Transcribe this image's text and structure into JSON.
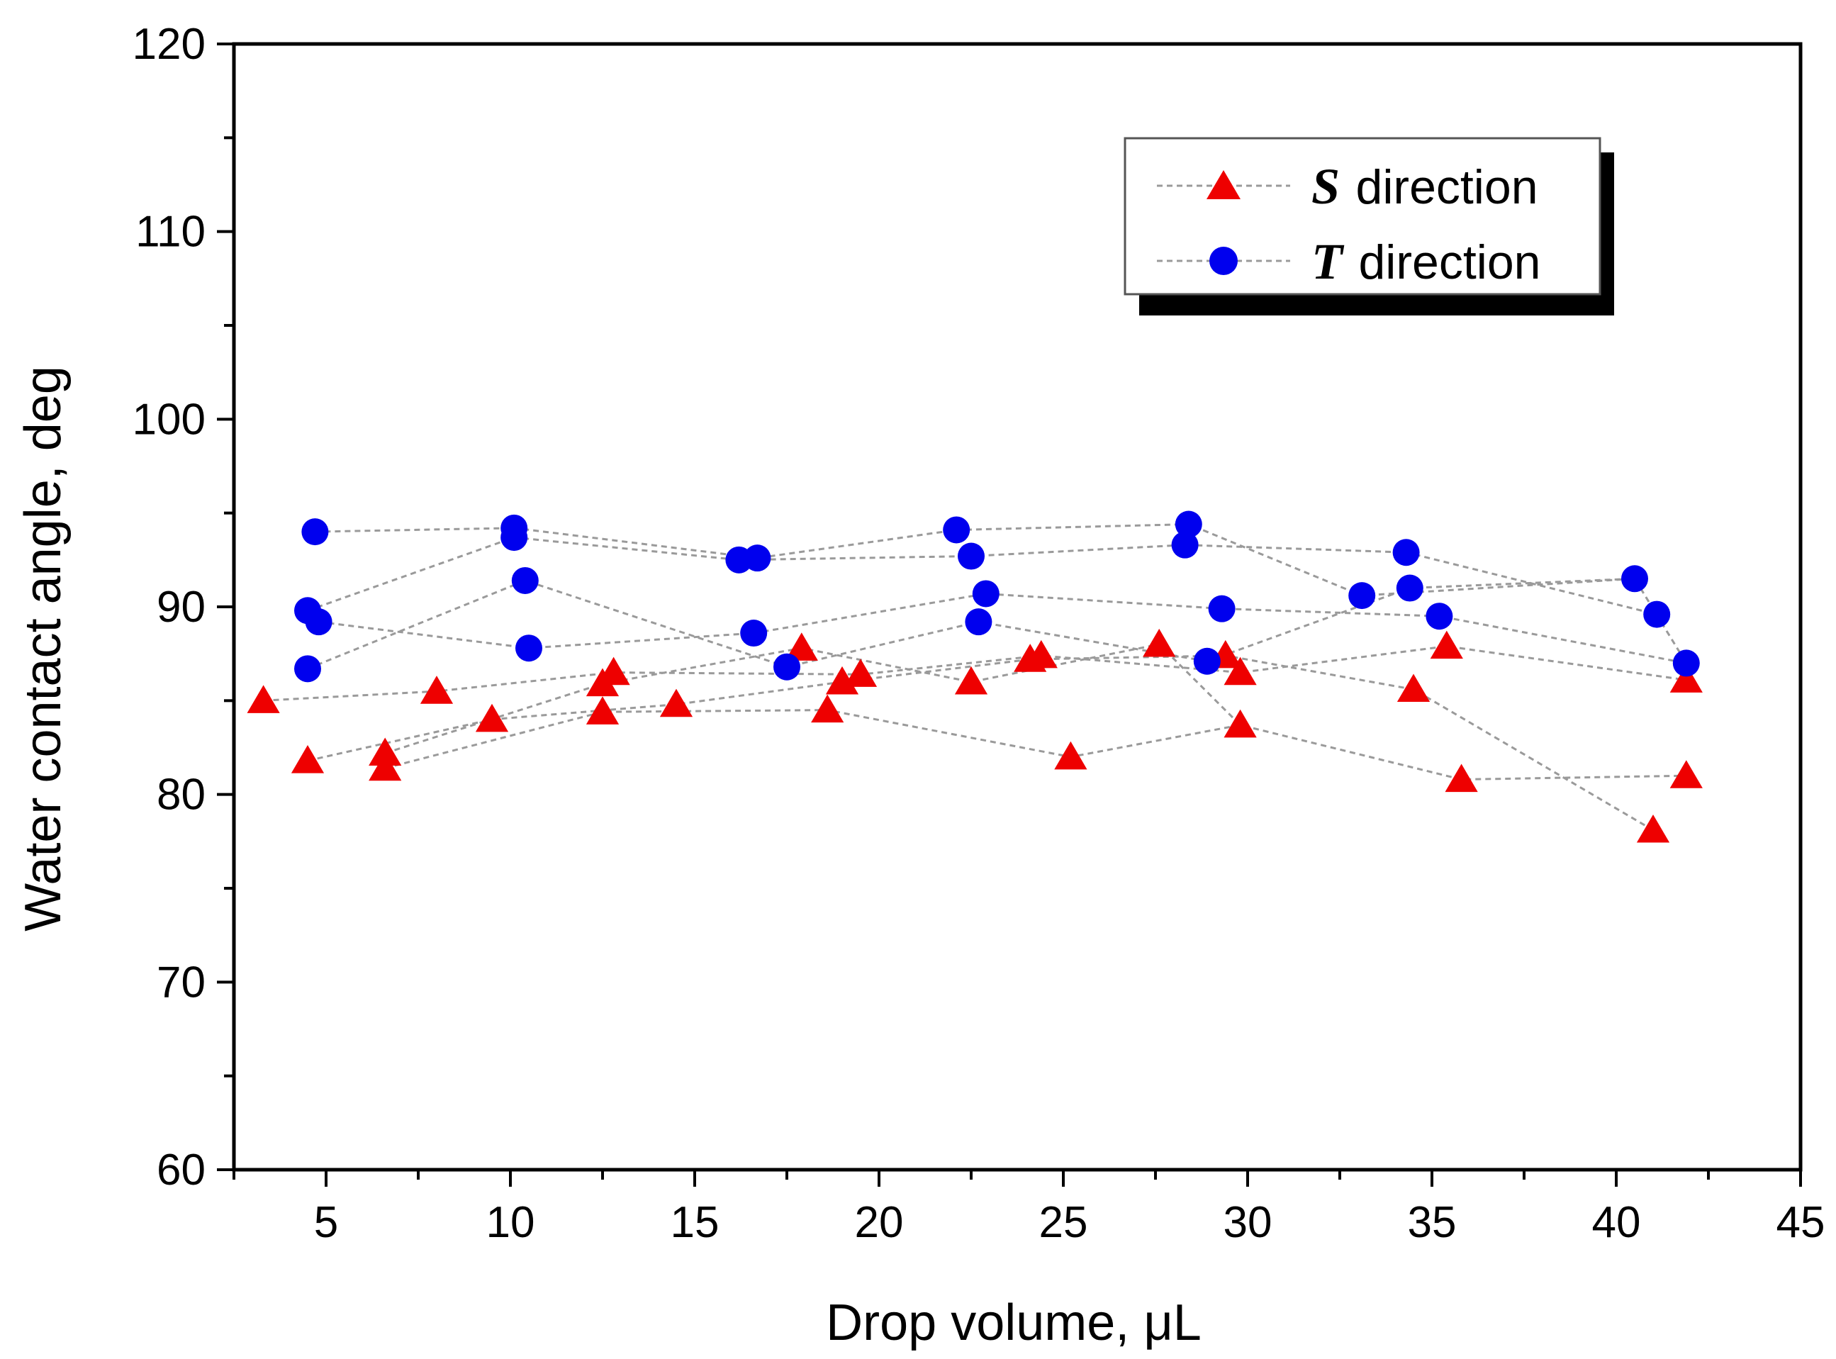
{
  "chart_data": {
    "type": "scatter",
    "title": "",
    "xlabel": "Drop volume, μL",
    "ylabel": "Water contact angle, deg",
    "xlim": [
      2.5,
      45
    ],
    "ylim": [
      60,
      120
    ],
    "xticks": [
      5,
      10,
      15,
      20,
      25,
      30,
      35,
      40,
      45
    ],
    "yticks": [
      60,
      70,
      80,
      90,
      100,
      110,
      120
    ],
    "grid": false,
    "legend_position": "top-right",
    "colors": {
      "S": "#ee0000",
      "T": "#0000ee",
      "line": "#9a9a9a"
    },
    "series": [
      {
        "name": "S direction",
        "symbol": "S",
        "label": "direction",
        "marker": "triangle",
        "points": [
          [
            3.3,
            85.0
          ],
          [
            4.5,
            81.8
          ],
          [
            6.6,
            82.2
          ],
          [
            6.6,
            81.4
          ],
          [
            8.0,
            85.5
          ],
          [
            9.5,
            84.0
          ],
          [
            12.5,
            85.9
          ],
          [
            12.5,
            84.4
          ],
          [
            12.8,
            86.5
          ],
          [
            14.5,
            84.8
          ],
          [
            17.9,
            87.8
          ],
          [
            18.6,
            84.5
          ],
          [
            19.0,
            86.0
          ],
          [
            19.5,
            86.4
          ],
          [
            22.5,
            86.0
          ],
          [
            24.1,
            87.2
          ],
          [
            24.4,
            87.4
          ],
          [
            25.2,
            82.0
          ],
          [
            27.6,
            88.0
          ],
          [
            29.4,
            87.4
          ],
          [
            29.8,
            86.5
          ],
          [
            29.8,
            83.7
          ],
          [
            34.5,
            85.6
          ],
          [
            35.4,
            87.9
          ],
          [
            35.8,
            80.8
          ],
          [
            41.0,
            78.1
          ],
          [
            41.9,
            86.1
          ],
          [
            41.9,
            81.0
          ]
        ],
        "connections": [
          [
            [
              3.3,
              85.0
            ],
            [
              8.0,
              85.5
            ],
            [
              12.8,
              86.5
            ],
            [
              19.5,
              86.4
            ],
            [
              24.4,
              87.4
            ],
            [
              29.8,
              86.5
            ],
            [
              35.4,
              87.9
            ],
            [
              41.9,
              86.1
            ]
          ],
          [
            [
              4.5,
              81.8
            ],
            [
              9.5,
              84.0
            ],
            [
              14.5,
              84.8
            ],
            [
              19.0,
              86.0
            ],
            [
              24.1,
              87.2
            ],
            [
              29.4,
              87.4
            ],
            [
              34.5,
              85.6
            ],
            [
              41.0,
              78.1
            ]
          ],
          [
            [
              6.6,
              82.2
            ],
            [
              12.5,
              85.9
            ],
            [
              17.9,
              87.8
            ],
            [
              22.5,
              86.0
            ],
            [
              27.6,
              88.0
            ],
            [
              29.8,
              83.7
            ],
            [
              35.8,
              80.8
            ],
            [
              41.9,
              81.0
            ]
          ],
          [
            [
              6.6,
              81.4
            ],
            [
              12.5,
              84.4
            ],
            [
              18.6,
              84.5
            ],
            [
              25.2,
              82.0
            ],
            [
              29.8,
              83.7
            ]
          ]
        ]
      },
      {
        "name": "T direction",
        "symbol": "T",
        "label": "direction",
        "marker": "circle",
        "points": [
          [
            4.7,
            94.0
          ],
          [
            4.5,
            89.8
          ],
          [
            4.8,
            89.2
          ],
          [
            4.5,
            86.7
          ],
          [
            10.1,
            94.2
          ],
          [
            10.1,
            93.7
          ],
          [
            10.4,
            91.4
          ],
          [
            10.5,
            87.8
          ],
          [
            16.2,
            92.5
          ],
          [
            16.7,
            92.6
          ],
          [
            16.6,
            88.6
          ],
          [
            17.5,
            86.8
          ],
          [
            22.1,
            94.1
          ],
          [
            22.5,
            92.7
          ],
          [
            22.9,
            90.7
          ],
          [
            22.7,
            89.2
          ],
          [
            28.4,
            94.4
          ],
          [
            28.3,
            93.3
          ],
          [
            29.3,
            89.9
          ],
          [
            28.9,
            87.1
          ],
          [
            33.1,
            90.6
          ],
          [
            34.3,
            92.9
          ],
          [
            34.4,
            91.0
          ],
          [
            35.2,
            89.5
          ],
          [
            40.5,
            91.5
          ],
          [
            41.1,
            89.6
          ],
          [
            41.9,
            87.0
          ]
        ],
        "connections": [
          [
            [
              4.7,
              94.0
            ],
            [
              10.1,
              94.2
            ],
            [
              16.7,
              92.6
            ],
            [
              22.1,
              94.1
            ],
            [
              28.4,
              94.4
            ],
            [
              33.1,
              90.6
            ],
            [
              40.5,
              91.5
            ],
            [
              41.9,
              87.0
            ]
          ],
          [
            [
              4.5,
              89.8
            ],
            [
              10.1,
              93.7
            ],
            [
              16.2,
              92.5
            ],
            [
              22.5,
              92.7
            ],
            [
              28.3,
              93.3
            ],
            [
              34.3,
              92.9
            ],
            [
              41.1,
              89.6
            ]
          ],
          [
            [
              4.8,
              89.2
            ],
            [
              10.5,
              87.8
            ],
            [
              16.6,
              88.6
            ],
            [
              22.9,
              90.7
            ],
            [
              29.3,
              89.9
            ],
            [
              35.2,
              89.5
            ],
            [
              41.9,
              87.0
            ]
          ],
          [
            [
              4.5,
              86.7
            ],
            [
              10.4,
              91.4
            ],
            [
              17.5,
              86.8
            ],
            [
              22.7,
              89.2
            ],
            [
              28.9,
              87.1
            ],
            [
              34.4,
              91.0
            ],
            [
              40.5,
              91.5
            ]
          ]
        ]
      }
    ]
  }
}
